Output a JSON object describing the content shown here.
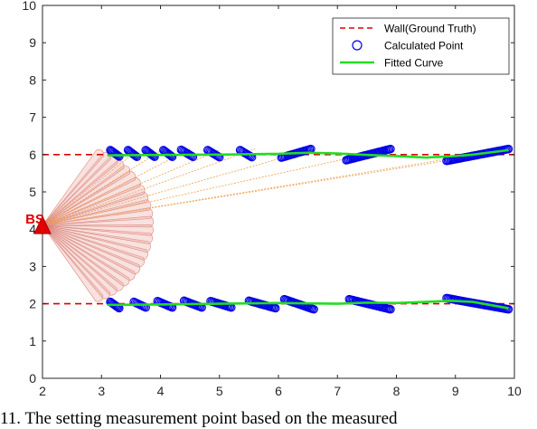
{
  "chart_data": {
    "type": "line",
    "title": "",
    "xlabel": "",
    "ylabel": "",
    "xlim": [
      2,
      10
    ],
    "ylim": [
      0,
      10
    ],
    "xticks": [
      "2",
      "3",
      "4",
      "5",
      "6",
      "7",
      "8",
      "9",
      "10"
    ],
    "yticks": [
      "0",
      "1",
      "2",
      "3",
      "4",
      "5",
      "6",
      "7",
      "8",
      "9",
      "10"
    ],
    "grid": false,
    "legend_position": "top-right",
    "legend": [
      {
        "label": "Wall(Ground Truth)",
        "style": "dashed-line",
        "color": "#e00000"
      },
      {
        "label": "Calculated Point",
        "style": "circle-marker",
        "color": "#0000e6"
      },
      {
        "label": "Fitted Curve",
        "style": "solid-line",
        "color": "#22dd22"
      }
    ],
    "base_station": {
      "label": "BS",
      "x": 2,
      "y": 4.1,
      "color": "#e00000"
    },
    "series": [
      {
        "name": "Wall(Ground Truth)",
        "style": "dashed",
        "color": "#e00000",
        "segments": [
          {
            "x": [
              2,
              10
            ],
            "y": [
              6,
              6
            ]
          },
          {
            "x": [
              2,
              10
            ],
            "y": [
              2,
              2
            ]
          }
        ]
      },
      {
        "name": "Fitted Curve",
        "style": "solid",
        "color": "#22dd22",
        "segments": [
          {
            "x": [
              3.1,
              4.0,
              5.0,
              6.0,
              6.5,
              7.0,
              7.5,
              8.0,
              8.5,
              8.9,
              9.3,
              9.9
            ],
            "y": [
              5.98,
              5.99,
              6.0,
              6.02,
              6.05,
              6.03,
              5.99,
              5.96,
              5.92,
              5.95,
              6.0,
              6.12
            ]
          },
          {
            "x": [
              3.1,
              4.0,
              5.0,
              6.0,
              7.0,
              7.5,
              8.0,
              8.5,
              8.9,
              9.3,
              9.9
            ],
            "y": [
              1.97,
              1.98,
              2.0,
              2.02,
              2.0,
              2.03,
              2.02,
              2.05,
              2.08,
              2.05,
              1.88
            ]
          }
        ]
      },
      {
        "name": "Calculated Point",
        "style": "markers",
        "color": "#0000e6",
        "clusters": [
          {
            "x1": 3.15,
            "y1": 6.12,
            "x2": 3.3,
            "y2": 5.95
          },
          {
            "x1": 3.45,
            "y1": 6.12,
            "x2": 3.6,
            "y2": 5.94
          },
          {
            "x1": 3.75,
            "y1": 6.12,
            "x2": 3.9,
            "y2": 5.94
          },
          {
            "x1": 4.05,
            "y1": 6.12,
            "x2": 4.2,
            "y2": 5.94
          },
          {
            "x1": 4.35,
            "y1": 6.13,
            "x2": 4.55,
            "y2": 5.94
          },
          {
            "x1": 4.8,
            "y1": 6.12,
            "x2": 5.0,
            "y2": 5.93
          },
          {
            "x1": 5.35,
            "y1": 6.12,
            "x2": 5.55,
            "y2": 5.93
          },
          {
            "x1": 6.05,
            "y1": 5.92,
            "x2": 6.55,
            "y2": 6.15
          },
          {
            "x1": 7.15,
            "y1": 5.85,
            "x2": 7.9,
            "y2": 6.15
          },
          {
            "x1": 8.85,
            "y1": 5.83,
            "x2": 9.9,
            "y2": 6.15
          },
          {
            "x1": 3.15,
            "y1": 2.05,
            "x2": 3.3,
            "y2": 1.88
          },
          {
            "x1": 3.55,
            "y1": 2.05,
            "x2": 3.75,
            "y2": 1.9
          },
          {
            "x1": 3.95,
            "y1": 2.07,
            "x2": 4.2,
            "y2": 1.9
          },
          {
            "x1": 4.4,
            "y1": 2.08,
            "x2": 4.7,
            "y2": 1.9
          },
          {
            "x1": 4.85,
            "y1": 2.07,
            "x2": 5.2,
            "y2": 1.9
          },
          {
            "x1": 5.5,
            "y1": 2.08,
            "x2": 5.95,
            "y2": 1.88
          },
          {
            "x1": 6.1,
            "y1": 2.12,
            "x2": 6.6,
            "y2": 1.85
          },
          {
            "x1": 7.2,
            "y1": 2.12,
            "x2": 7.9,
            "y2": 1.85
          },
          {
            "x1": 8.85,
            "y1": 2.15,
            "x2": 9.9,
            "y2": 1.85
          }
        ]
      }
    ]
  },
  "caption": "11. The setting  measurement point  based on  the  measured"
}
